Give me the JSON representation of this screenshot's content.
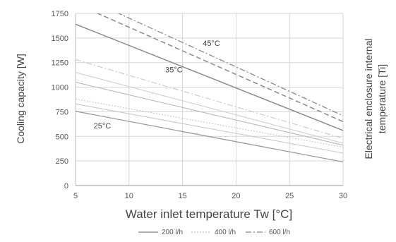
{
  "chart_data": {
    "type": "line",
    "xlabel": "Water inlet temperature Tw [°C]",
    "ylabel": "Cooling capacity [W]",
    "y2label_line1": "Electrical enclosure internal",
    "y2label_line2": "temperature [Ti]",
    "xlim": [
      5,
      30
    ],
    "ylim": [
      0,
      1750
    ],
    "xticks": [
      5,
      10,
      15,
      20,
      25,
      30
    ],
    "yticks": [
      0,
      250,
      500,
      750,
      1000,
      1250,
      1500,
      1750
    ],
    "grid": true,
    "legend_position": "bottom",
    "legend": [
      {
        "label": "200 l/h",
        "style": "solid",
        "color": "#9a9a9a"
      },
      {
        "label": "400 l/h",
        "style": "dotted",
        "color": "#c8c8c8"
      },
      {
        "label": "600 l/h",
        "style": "dashdot",
        "color": "#9a9a9a"
      }
    ],
    "annotations": [
      {
        "text": "45°C",
        "x": 17.7,
        "y": 1420
      },
      {
        "text": "35°C",
        "x": 14.2,
        "y": 1150
      },
      {
        "text": "25°C",
        "x": 7.5,
        "y": 580
      }
    ],
    "series": [
      {
        "temp": "45°C",
        "flow": "200 l/h",
        "style": "solid",
        "color": "#8a8a8a",
        "width": 1.5,
        "x": [
          5,
          30
        ],
        "y": [
          1640,
          560
        ]
      },
      {
        "temp": "45°C",
        "flow": "400 l/h",
        "style": "dashed",
        "color": "#8a8a8a",
        "width": 1.5,
        "x": [
          5,
          30
        ],
        "y": [
          1850,
          650
        ]
      },
      {
        "temp": "45°C",
        "flow": "600 l/h",
        "style": "dashdot",
        "color": "#8a8a8a",
        "width": 1.3,
        "x": [
          5,
          30
        ],
        "y": [
          1950,
          710
        ]
      },
      {
        "temp": "35°C",
        "flow": "200 l/h",
        "style": "solid",
        "color": "#bdbdbd",
        "width": 1.2,
        "x": [
          5,
          30
        ],
        "y": [
          1050,
          410
        ]
      },
      {
        "temp": "35°C",
        "flow": "400 l/h",
        "style": "solid",
        "color": "#cfcfcf",
        "width": 1.1,
        "x": [
          5,
          30
        ],
        "y": [
          1150,
          430
        ]
      },
      {
        "temp": "35°C",
        "flow": "600 l/h",
        "style": "dashdot",
        "color": "#c8c8c8",
        "width": 1.1,
        "x": [
          5,
          30
        ],
        "y": [
          1280,
          480
        ]
      },
      {
        "temp": "25°C",
        "flow": "200 l/h",
        "style": "solid",
        "color": "#9a9a9a",
        "width": 1.3,
        "x": [
          5,
          30
        ],
        "y": [
          755,
          240
        ]
      },
      {
        "temp": "25°C",
        "flow": "400 l/h",
        "style": "solid",
        "color": "#c8c8c8",
        "width": 1.1,
        "x": [
          5,
          30
        ],
        "y": [
          830,
          330
        ]
      },
      {
        "temp": "25°C",
        "flow": "600 l/h",
        "style": "dotted",
        "color": "#c8c8c8",
        "width": 1.1,
        "x": [
          5,
          30
        ],
        "y": [
          880,
          390
        ]
      }
    ]
  }
}
